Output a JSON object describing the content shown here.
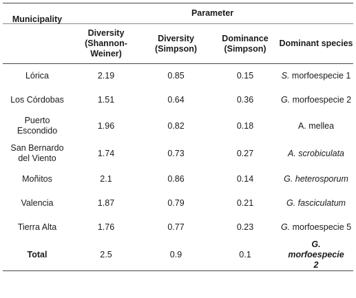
{
  "table": {
    "group_header": "Parameter",
    "headers": {
      "municipality": "Municipality",
      "shannon": "Diversity (Shannon-Weiner)",
      "simpson_div": "Diversity (Simpson)",
      "simpson_dom": "Dominance (Simpson)",
      "dominant": "Dominant species"
    },
    "rows": [
      {
        "municipality": "Lórica",
        "shannon": "2.19",
        "simpson_div": "0.85",
        "simpson_dom": "0.15",
        "sp_genus": "S.",
        "sp_epithet": "morfoespecie 1"
      },
      {
        "municipality": "Los Córdobas",
        "shannon": "1.51",
        "simpson_div": "0.64",
        "simpson_dom": "0.36",
        "sp_genus": "G.",
        "sp_epithet": "morfoespecie 2"
      },
      {
        "municipality": "Puerto Escondido",
        "shannon": "1.96",
        "simpson_div": "0.82",
        "simpson_dom": "0.18",
        "sp_genus": "",
        "sp_epithet": "A. mellea"
      },
      {
        "municipality": "San Bernardo del Viento",
        "shannon": "1.74",
        "simpson_div": "0.73",
        "simpson_dom": "0.27",
        "sp_genus": "A. scrobiculata",
        "sp_epithet": ""
      },
      {
        "municipality": "Moñitos",
        "shannon": "2.1",
        "simpson_div": "0.86",
        "simpson_dom": "0.14",
        "sp_genus": "G. heterosporum",
        "sp_epithet": ""
      },
      {
        "municipality": "Valencia",
        "shannon": "1.87",
        "simpson_div": "0.79",
        "simpson_dom": "0.21",
        "sp_genus": "G. fasciculatum",
        "sp_epithet": ""
      },
      {
        "municipality": "Tierra Alta",
        "shannon": "1.76",
        "simpson_div": "0.77",
        "simpson_dom": "0.23",
        "sp_genus": "G.",
        "sp_epithet": "morfoespecie 5"
      }
    ],
    "total": {
      "municipality": "Total",
      "shannon": "2.5",
      "simpson_div": "0.9",
      "simpson_dom": "0.1",
      "dominant": "G. morfoespecie 2"
    }
  }
}
